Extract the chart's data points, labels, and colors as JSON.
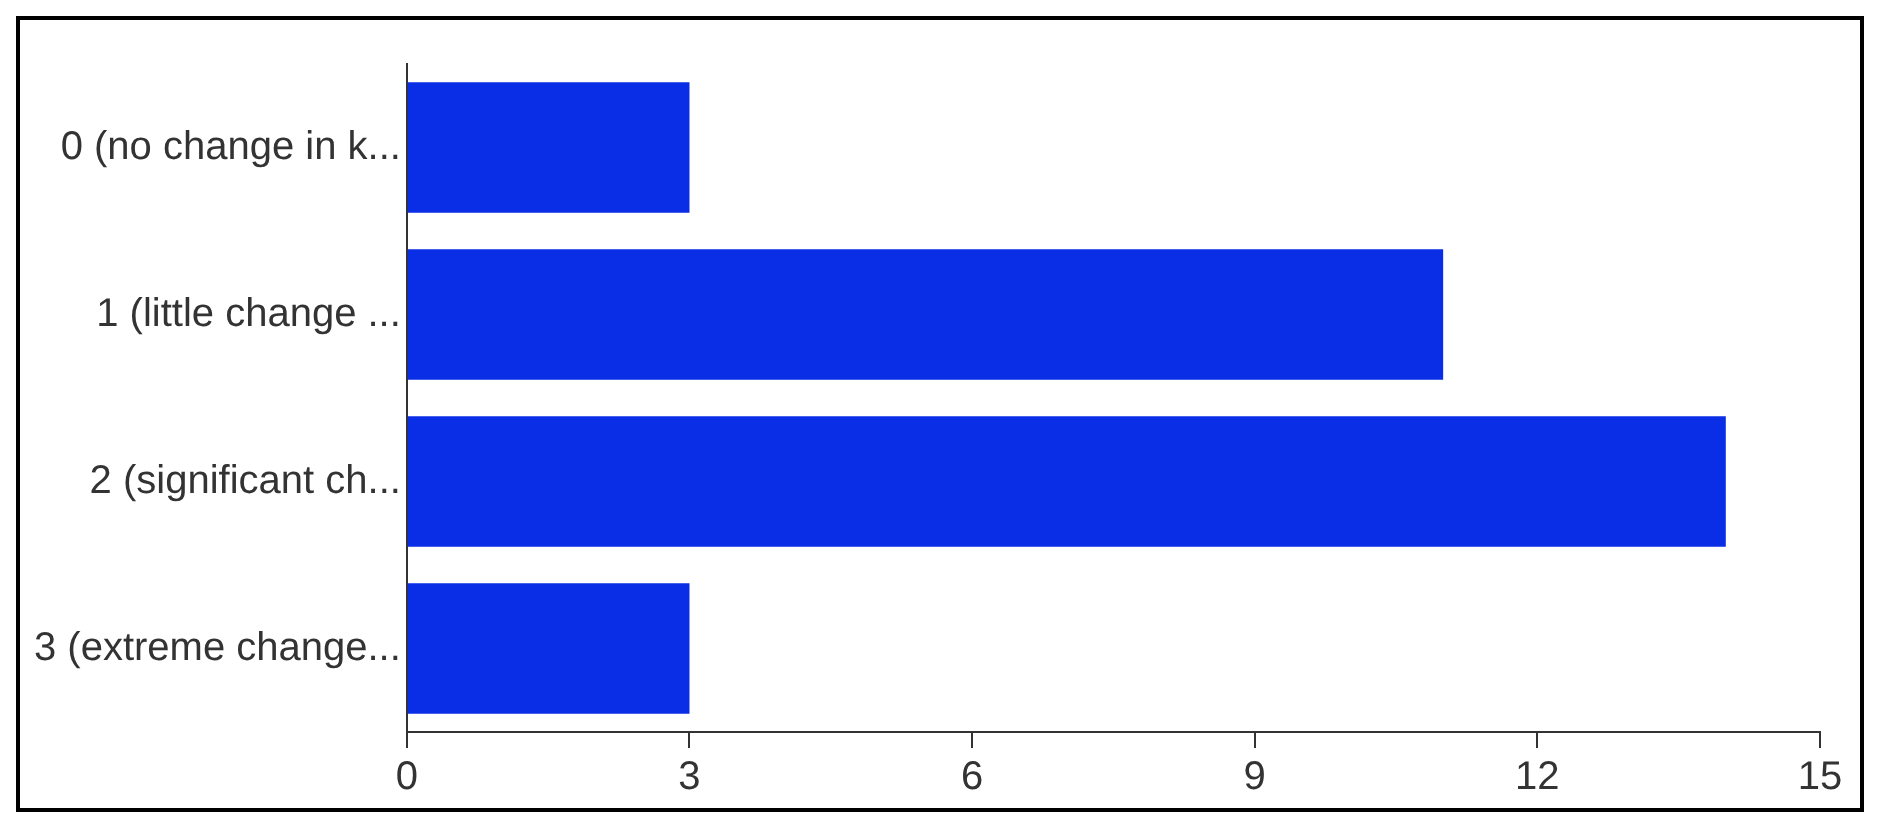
{
  "chart_data": {
    "type": "bar",
    "orientation": "horizontal",
    "categories": [
      "0 (no change in k...",
      "1 (little change ...",
      "2 (significant ch...",
      "3 (extreme change..."
    ],
    "values": [
      3,
      11,
      14,
      3
    ],
    "color": "#0a2de6",
    "xlim": [
      0,
      15
    ],
    "xticks": [
      0,
      3,
      6,
      9,
      12,
      15
    ],
    "grid": false,
    "legend": false
  }
}
